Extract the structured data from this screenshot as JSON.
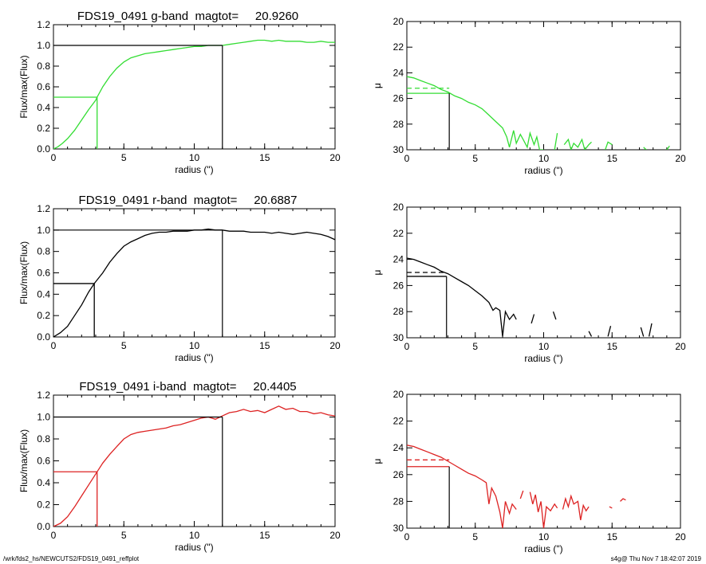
{
  "footer": {
    "left": "/wrk/fds2_hs/NEWCUTS2/FDS19_0491_reffplot",
    "right": "s4g@  Thu Nov  7 18:42:07 2019"
  },
  "chart_data": [
    {
      "type": "line",
      "title": "FDS19_0491 g-band  magtot=     20.9260",
      "xlabel": "radius (\")",
      "ylabel": "Flux/max(Flux)",
      "xlim": [
        0,
        20
      ],
      "ylim": [
        0,
        1.2
      ],
      "xticks": [
        0,
        5,
        10,
        15,
        20
      ],
      "yticks": [
        0.0,
        0.2,
        0.4,
        0.6,
        0.8,
        1.0,
        1.2
      ],
      "color": "#33dd33",
      "x": [
        0,
        0.3,
        0.6,
        1.0,
        1.5,
        2.0,
        2.5,
        3.0,
        3.1,
        3.5,
        4.0,
        4.5,
        5.0,
        5.5,
        6.0,
        6.5,
        7.0,
        7.5,
        8.0,
        8.5,
        9.0,
        9.5,
        10.0,
        10.5,
        11.0,
        11.5,
        12.0,
        12.5,
        13.0,
        13.5,
        14.0,
        14.5,
        15.0,
        15.5,
        16.0,
        16.5,
        17.0,
        17.5,
        18.0,
        18.5,
        19.0,
        19.5,
        20.0
      ],
      "y": [
        0.0,
        0.02,
        0.05,
        0.1,
        0.18,
        0.28,
        0.38,
        0.47,
        0.5,
        0.6,
        0.7,
        0.78,
        0.84,
        0.88,
        0.9,
        0.92,
        0.93,
        0.94,
        0.95,
        0.96,
        0.97,
        0.98,
        0.99,
        0.99,
        1.0,
        1.0,
        1.0,
        1.01,
        1.02,
        1.03,
        1.04,
        1.05,
        1.05,
        1.04,
        1.05,
        1.04,
        1.04,
        1.04,
        1.03,
        1.03,
        1.04,
        1.03,
        1.03
      ],
      "half_light": {
        "radius": 3.1,
        "value": 0.5
      },
      "total_radius": 12.0
    },
    {
      "type": "line",
      "xlabel": "radius (\")",
      "ylabel": "μ",
      "xlim": [
        0,
        20
      ],
      "ylim": [
        30,
        20
      ],
      "xticks": [
        0,
        5,
        10,
        15,
        20
      ],
      "yticks": [
        20,
        22,
        24,
        26,
        28,
        30
      ],
      "color": "#33dd33",
      "series": [
        {
          "x": [
            0,
            0.5,
            1.0,
            1.5,
            2.0,
            2.5,
            3.0,
            3.5,
            4.0,
            4.5,
            5.0,
            5.5,
            6.0,
            6.5,
            7.0,
            7.3,
            7.5,
            7.8,
            8.0,
            8.3,
            8.5,
            8.8,
            9.0,
            9.3,
            9.5,
            9.7,
            10.0
          ],
          "y": [
            24.3,
            24.4,
            24.6,
            24.8,
            25.0,
            25.3,
            25.5,
            25.8,
            26.0,
            26.3,
            26.5,
            26.8,
            27.3,
            27.8,
            28.3,
            29.0,
            29.8,
            28.5,
            29.5,
            28.8,
            29.2,
            29.8,
            28.7,
            29.6,
            29.0,
            30.0,
            30.0
          ]
        },
        {
          "x": [
            10.8,
            11.0
          ],
          "y": [
            30.0,
            28.7
          ]
        },
        {
          "x": [
            11.5,
            11.8,
            12.0,
            12.2,
            12.5,
            12.8,
            13.0,
            13.3,
            13.5
          ],
          "y": [
            29.6,
            29.2,
            30.0,
            29.5,
            29.8,
            29.2,
            30.0,
            29.6,
            29.4
          ]
        },
        {
          "x": [
            14.5,
            14.7,
            15.0
          ],
          "y": [
            30.0,
            29.4,
            29.6
          ]
        },
        {
          "x": [
            17.3,
            17.5
          ],
          "y": [
            29.8,
            30.0
          ]
        },
        {
          "x": [
            19.0,
            19.2
          ],
          "y": [
            30.0,
            29.7
          ]
        }
      ],
      "re_radius": 3.1,
      "mu_e": 25.6,
      "mu_mean_e": 25.2
    },
    {
      "type": "line",
      "title": "FDS19_0491 r-band  magtot=     20.6887",
      "xlabel": "radius (\")",
      "ylabel": "Flux/max(Flux)",
      "xlim": [
        0,
        20
      ],
      "ylim": [
        0,
        1.2
      ],
      "xticks": [
        0,
        5,
        10,
        15,
        20
      ],
      "yticks": [
        0.0,
        0.2,
        0.4,
        0.6,
        0.8,
        1.0,
        1.2
      ],
      "color": "#000000",
      "x": [
        0,
        0.5,
        1.0,
        1.5,
        2.0,
        2.5,
        2.9,
        3.5,
        4.0,
        4.5,
        5.0,
        5.5,
        6.0,
        6.5,
        7.0,
        7.5,
        8.0,
        8.5,
        9.0,
        9.5,
        10.0,
        10.5,
        11.0,
        11.5,
        12.0,
        12.5,
        13.0,
        13.5,
        14.0,
        14.5,
        15.0,
        15.5,
        16.0,
        16.5,
        17.0,
        17.5,
        18.0,
        18.5,
        19.0,
        19.5,
        20.0
      ],
      "y": [
        0.0,
        0.04,
        0.1,
        0.2,
        0.3,
        0.42,
        0.5,
        0.6,
        0.7,
        0.78,
        0.85,
        0.89,
        0.92,
        0.95,
        0.97,
        0.98,
        0.98,
        0.99,
        0.99,
        0.99,
        1.0,
        1.0,
        1.01,
        1.0,
        1.0,
        0.99,
        0.99,
        0.99,
        0.98,
        0.98,
        0.98,
        0.97,
        0.98,
        0.97,
        0.96,
        0.97,
        0.98,
        0.97,
        0.96,
        0.94,
        0.91
      ],
      "half_light": {
        "radius": 2.9,
        "value": 0.5
      },
      "total_radius": 12.0
    },
    {
      "type": "line",
      "xlabel": "radius (\")",
      "ylabel": "μ",
      "xlim": [
        0,
        20
      ],
      "ylim": [
        30,
        20
      ],
      "xticks": [
        0,
        5,
        10,
        15,
        20
      ],
      "yticks": [
        20,
        22,
        24,
        26,
        28,
        30
      ],
      "color": "#000000",
      "series": [
        {
          "x": [
            0,
            0.5,
            1.0,
            1.5,
            2.0,
            2.5,
            3.0,
            3.5,
            4.0,
            4.5,
            5.0,
            5.5,
            6.0,
            6.3,
            6.5,
            6.8,
            7.0,
            7.2,
            7.5,
            7.8,
            8.0
          ],
          "y": [
            23.9,
            24.0,
            24.2,
            24.4,
            24.6,
            24.9,
            25.1,
            25.4,
            25.7,
            26.0,
            26.4,
            26.8,
            27.3,
            27.9,
            27.7,
            27.9,
            29.9,
            28.0,
            28.6,
            28.2,
            28.6
          ]
        },
        {
          "x": [
            9.1,
            9.3
          ],
          "y": [
            28.9,
            28.2
          ]
        },
        {
          "x": [
            10.7,
            10.9
          ],
          "y": [
            28.0,
            28.6
          ]
        },
        {
          "x": [
            13.3,
            13.5
          ],
          "y": [
            29.5,
            29.9
          ]
        },
        {
          "x": [
            14.7,
            14.9
          ],
          "y": [
            29.9,
            29.1
          ]
        },
        {
          "x": [
            17.1,
            17.3
          ],
          "y": [
            29.2,
            29.9
          ]
        },
        {
          "x": [
            17.7,
            17.9
          ],
          "y": [
            29.9,
            28.9
          ]
        }
      ],
      "re_radius": 2.9,
      "mu_e": 25.3,
      "mu_mean_e": 25.0
    },
    {
      "type": "line",
      "title": "FDS19_0491 i-band  magtot=     20.4405",
      "xlabel": "radius (\")",
      "ylabel": "Flux/max(Flux)",
      "xlim": [
        0,
        20
      ],
      "ylim": [
        0,
        1.2
      ],
      "xticks": [
        0,
        5,
        10,
        15,
        20
      ],
      "yticks": [
        0.0,
        0.2,
        0.4,
        0.6,
        0.8,
        1.0,
        1.2
      ],
      "color": "#dd2222",
      "x": [
        0,
        0.5,
        1.0,
        1.5,
        2.0,
        2.5,
        3.1,
        3.5,
        4.0,
        4.5,
        5.0,
        5.5,
        6.0,
        6.5,
        7.0,
        7.5,
        8.0,
        8.5,
        9.0,
        9.5,
        10.0,
        10.5,
        11.0,
        11.5,
        12.0,
        12.5,
        13.0,
        13.5,
        14.0,
        14.5,
        15.0,
        15.5,
        16.0,
        16.5,
        17.0,
        17.5,
        18.0,
        18.5,
        19.0,
        19.5,
        20.0
      ],
      "y": [
        0.0,
        0.03,
        0.09,
        0.18,
        0.28,
        0.38,
        0.5,
        0.58,
        0.66,
        0.73,
        0.8,
        0.84,
        0.86,
        0.87,
        0.88,
        0.89,
        0.9,
        0.92,
        0.93,
        0.95,
        0.97,
        0.99,
        1.0,
        0.98,
        1.01,
        1.04,
        1.05,
        1.07,
        1.05,
        1.06,
        1.04,
        1.07,
        1.1,
        1.07,
        1.08,
        1.05,
        1.05,
        1.03,
        1.04,
        1.02,
        1.01
      ],
      "half_light": {
        "radius": 3.1,
        "value": 0.5
      },
      "total_radius": 12.0
    },
    {
      "type": "line",
      "xlabel": "radius (\")",
      "ylabel": "μ",
      "xlim": [
        0,
        20
      ],
      "ylim": [
        30,
        20
      ],
      "xticks": [
        0,
        5,
        10,
        15,
        20
      ],
      "yticks": [
        20,
        22,
        24,
        26,
        28,
        30
      ],
      "color": "#dd2222",
      "series": [
        {
          "x": [
            0,
            0.5,
            1.0,
            1.5,
            2.0,
            2.5,
            3.0,
            3.5,
            4.0,
            4.5,
            5.0,
            5.5,
            5.8,
            6.0,
            6.2,
            6.5,
            6.8,
            7.0,
            7.2,
            7.5,
            7.7,
            8.0
          ],
          "y": [
            23.8,
            23.9,
            24.1,
            24.3,
            24.5,
            24.7,
            25.0,
            25.3,
            25.6,
            25.9,
            26.1,
            26.4,
            26.6,
            28.2,
            27.0,
            27.6,
            28.8,
            30.0,
            28.0,
            28.9,
            28.2,
            28.6
          ]
        },
        {
          "x": [
            8.3,
            8.5
          ],
          "y": [
            27.8,
            27.2
          ]
        },
        {
          "x": [
            9.0,
            9.2,
            9.4,
            9.6,
            9.8,
            10.0,
            10.2,
            10.5,
            10.8,
            11.0
          ],
          "y": [
            27.3,
            28.2,
            27.5,
            28.8,
            28.0,
            30.0,
            28.4,
            28.7,
            28.2,
            28.5
          ]
        },
        {
          "x": [
            11.4,
            11.6,
            11.8,
            12.0,
            12.2,
            12.5,
            12.7,
            12.9,
            13.1,
            13.3
          ],
          "y": [
            28.6,
            27.8,
            28.4,
            27.6,
            28.2,
            28.0,
            29.4,
            28.3,
            28.7,
            28.4
          ]
        },
        {
          "x": [
            14.8,
            15.0
          ],
          "y": [
            28.4,
            28.5
          ]
        },
        {
          "x": [
            15.6,
            15.8,
            16.0
          ],
          "y": [
            28.0,
            27.8,
            27.9
          ]
        }
      ],
      "re_radius": 3.1,
      "mu_e": 25.4,
      "mu_mean_e": 24.9
    }
  ]
}
